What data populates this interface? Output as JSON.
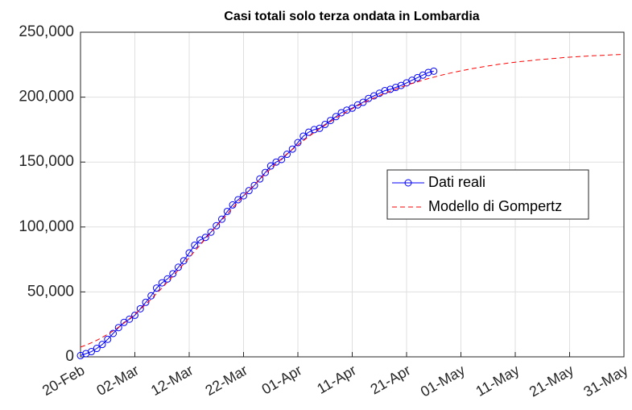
{
  "chart_data": {
    "type": "line",
    "title": "Casi totali solo terza ondata in Lombardia",
    "categories": [
      "20-Feb",
      null,
      null,
      null,
      null,
      null,
      null,
      null,
      null,
      null,
      "02-Mar",
      null,
      null,
      null,
      null,
      null,
      null,
      null,
      null,
      null,
      "12-Mar",
      null,
      null,
      null,
      null,
      null,
      null,
      null,
      null,
      null,
      "22-Mar",
      null,
      null,
      null,
      null,
      null,
      null,
      null,
      null,
      null,
      "01-Apr",
      null,
      null,
      null,
      null,
      null,
      null,
      null,
      null,
      null,
      "11-Apr",
      null,
      null,
      null,
      null,
      null,
      null,
      null,
      null,
      null,
      "21-Apr",
      null,
      null,
      null,
      null,
      null,
      null,
      null,
      null,
      null,
      "01-May",
      null,
      null,
      null,
      null,
      null,
      null,
      null,
      null,
      null,
      "11-May",
      null,
      null,
      null,
      null,
      null,
      null,
      null,
      null,
      null,
      "21-May",
      null,
      null,
      null,
      null,
      null,
      null,
      null,
      null,
      null,
      "31-May"
    ],
    "series": [
      {
        "name": "Dati reali",
        "color": "#0000ff",
        "marker": "o",
        "linestyle": "solid",
        "values": [
          1000,
          2500,
          4000,
          6500,
          9500,
          13500,
          18000,
          22500,
          26500,
          29000,
          32000,
          37000,
          42000,
          47000,
          53000,
          57000,
          60000,
          64000,
          69000,
          74000,
          80000,
          86000,
          90000,
          92000,
          96000,
          101000,
          106000,
          112000,
          117000,
          121000,
          124000,
          128000,
          132000,
          137000,
          142000,
          147000,
          150000,
          152000,
          156000,
          160000,
          165000,
          170000,
          173000,
          175000,
          176000,
          179000,
          182000,
          185000,
          188000,
          190000,
          191500,
          194000,
          196000,
          199000,
          201000,
          203000,
          205000,
          206000,
          207500,
          209000,
          211000,
          213000,
          215000,
          217000,
          219000,
          220000,
          null,
          null,
          null,
          null,
          null,
          null,
          null,
          null,
          null,
          null,
          null,
          null,
          null,
          null,
          null,
          null,
          null,
          null,
          null,
          null,
          null,
          null,
          null,
          null,
          null,
          null,
          null,
          null,
          null,
          null,
          null,
          null,
          null,
          null,
          null
        ]
      },
      {
        "name": "Modello di Gompertz",
        "color": "#ff0000",
        "marker": "none",
        "linestyle": "dashed",
        "values": [
          7500,
          9000,
          10800,
          12800,
          15000,
          17400,
          20000,
          22900,
          26000,
          29300,
          32800,
          36600,
          40500,
          44500,
          48800,
          53100,
          57600,
          62200,
          66900,
          71600,
          76400,
          81300,
          86100,
          90900,
          95800,
          100600,
          105300,
          110000,
          114800,
          119300,
          123800,
          128200,
          132500,
          136800,
          140900,
          144900,
          148800,
          152600,
          156300,
          159800,
          163200,
          166500,
          169700,
          172700,
          175700,
          178500,
          181200,
          184000,
          186400,
          188800,
          191100,
          193400,
          195400,
          197500,
          199300,
          201300,
          202900,
          204600,
          206200,
          207700,
          209100,
          210600,
          211800,
          213100,
          214300,
          215400,
          216500,
          217500,
          218500,
          219400,
          220300,
          221100,
          221900,
          222600,
          223300,
          224000,
          224600,
          225300,
          225800,
          226400,
          226900,
          227400,
          227800,
          228200,
          228700,
          229100,
          229400,
          229800,
          230100,
          230500,
          230800,
          231000,
          231300,
          231600,
          231800,
          232000,
          232200,
          232400,
          232600,
          232800,
          233000
        ]
      }
    ],
    "ylim": [
      0,
      250000
    ],
    "yticks": [
      0,
      {
        "value": 50000,
        "label": "50,000"
      },
      {
        "value": 100000,
        "label": "100,000"
      },
      {
        "value": 150000,
        "label": "150,000"
      },
      {
        "value": 200000,
        "label": "200,000"
      },
      {
        "value": 250000,
        "label": "250,000"
      }
    ],
    "grid": true,
    "legend": "right"
  }
}
